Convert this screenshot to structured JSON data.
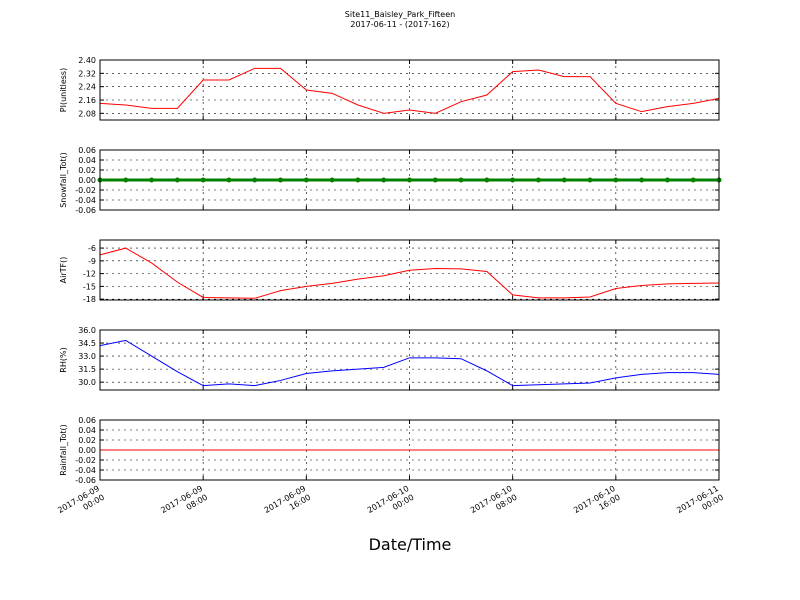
{
  "chart_data": [
    {
      "type": "line",
      "title": "Site11_Baisley_Park_Fifteen",
      "subtitle": "2017-06-11 - (2017-162)",
      "ylabel": "PI(unitless)",
      "color": "#ff0000",
      "grid": true,
      "x": [
        "2017-06-09 00:00",
        "2017-06-09 02:00",
        "2017-06-09 04:00",
        "2017-06-09 06:00",
        "2017-06-09 08:00",
        "2017-06-09 10:00",
        "2017-06-09 12:00",
        "2017-06-09 14:00",
        "2017-06-09 16:00",
        "2017-06-09 18:00",
        "2017-06-09 20:00",
        "2017-06-09 22:00",
        "2017-06-10 00:00",
        "2017-06-10 02:00",
        "2017-06-10 04:00",
        "2017-06-10 06:00",
        "2017-06-10 08:00",
        "2017-06-10 10:00",
        "2017-06-10 12:00",
        "2017-06-10 14:00",
        "2017-06-10 16:00",
        "2017-06-10 18:00",
        "2017-06-10 20:00",
        "2017-06-10 22:00",
        "2017-06-11 00:00"
      ],
      "values": [
        2.14,
        2.13,
        2.11,
        2.11,
        2.28,
        2.28,
        2.35,
        2.35,
        2.22,
        2.2,
        2.13,
        2.08,
        2.1,
        2.08,
        2.15,
        2.19,
        2.33,
        2.34,
        2.3,
        2.3,
        2.14,
        2.09,
        2.12,
        2.14,
        2.17
      ],
      "xlim": [
        "2017-06-09 00:00",
        "2017-06-11 00:00"
      ],
      "xticks": [
        "2017-06-09 00:00",
        "2017-06-09 08:00",
        "2017-06-09 16:00",
        "2017-06-10 00:00",
        "2017-06-10 08:00",
        "2017-06-10 16:00",
        "2017-06-11 00:00"
      ],
      "ylim": [
        2.04,
        2.4
      ],
      "yticks": [
        2.08,
        2.16,
        2.24,
        2.32,
        {
          "value": 2.4,
          "label": "2.40"
        }
      ]
    },
    {
      "type": "line",
      "ylabel": "Snowfall_Tot()",
      "color": "#008000",
      "markers": true,
      "grid": true,
      "x": [
        "2017-06-09 00:00",
        "2017-06-09 02:00",
        "2017-06-09 04:00",
        "2017-06-09 06:00",
        "2017-06-09 08:00",
        "2017-06-09 10:00",
        "2017-06-09 12:00",
        "2017-06-09 14:00",
        "2017-06-09 16:00",
        "2017-06-09 18:00",
        "2017-06-09 20:00",
        "2017-06-09 22:00",
        "2017-06-10 00:00",
        "2017-06-10 02:00",
        "2017-06-10 04:00",
        "2017-06-10 06:00",
        "2017-06-10 08:00",
        "2017-06-10 10:00",
        "2017-06-10 12:00",
        "2017-06-10 14:00",
        "2017-06-10 16:00",
        "2017-06-10 18:00",
        "2017-06-10 20:00",
        "2017-06-10 22:00",
        "2017-06-11 00:00"
      ],
      "values": [
        0,
        0,
        0,
        0,
        0,
        0,
        0,
        0,
        0,
        0,
        0,
        0,
        0,
        0,
        0,
        0,
        0,
        0,
        0,
        0,
        0,
        0,
        0,
        0,
        0
      ],
      "xlim": [
        "2017-06-09 00:00",
        "2017-06-11 00:00"
      ],
      "xticks": [
        "2017-06-09 00:00",
        "2017-06-09 08:00",
        "2017-06-09 16:00",
        "2017-06-10 00:00",
        "2017-06-10 08:00",
        "2017-06-10 16:00",
        "2017-06-11 00:00"
      ],
      "ylim": [
        -0.06,
        0.06
      ],
      "yticks": [
        -0.06,
        -0.04,
        -0.02,
        {
          "value": 0,
          "label": "0.00"
        },
        0.02,
        0.04,
        0.06
      ]
    },
    {
      "type": "line",
      "ylabel": "AirTF()",
      "color": "#ff0000",
      "grid": true,
      "x": [
        "2017-06-09 00:00",
        "2017-06-09 02:00",
        "2017-06-09 04:00",
        "2017-06-09 06:00",
        "2017-06-09 08:00",
        "2017-06-09 10:00",
        "2017-06-09 12:00",
        "2017-06-09 14:00",
        "2017-06-09 16:00",
        "2017-06-09 18:00",
        "2017-06-09 20:00",
        "2017-06-09 22:00",
        "2017-06-10 00:00",
        "2017-06-10 02:00",
        "2017-06-10 04:00",
        "2017-06-10 06:00",
        "2017-06-10 08:00",
        "2017-06-10 10:00",
        "2017-06-10 12:00",
        "2017-06-10 14:00",
        "2017-06-10 16:00",
        "2017-06-10 18:00",
        "2017-06-10 20:00",
        "2017-06-10 22:00",
        "2017-06-11 00:00"
      ],
      "values": [
        -7.6,
        -6.0,
        -9.5,
        -14,
        -17.6,
        -17.7,
        -17.8,
        -16.0,
        -15.0,
        -14.3,
        -13.3,
        -12.5,
        -11.2,
        -10.8,
        -10.9,
        -11.5,
        -17.0,
        -17.7,
        -17.7,
        -17.5,
        -15.5,
        -14.8,
        -14.4,
        -14.3,
        -14.2
      ],
      "xlim": [
        "2017-06-09 00:00",
        "2017-06-11 00:00"
      ],
      "xticks": [
        "2017-06-09 00:00",
        "2017-06-09 08:00",
        "2017-06-09 16:00",
        "2017-06-10 00:00",
        "2017-06-10 08:00",
        "2017-06-10 16:00",
        "2017-06-11 00:00"
      ],
      "ylim": [
        -18.2,
        -4.1
      ],
      "yticks": [
        -18,
        -15,
        -12,
        -9,
        -6
      ]
    },
    {
      "type": "line",
      "ylabel": "RH(%)",
      "color": "#0000ff",
      "grid": true,
      "x": [
        "2017-06-09 00:00",
        "2017-06-09 02:00",
        "2017-06-09 04:00",
        "2017-06-09 06:00",
        "2017-06-09 08:00",
        "2017-06-09 10:00",
        "2017-06-09 12:00",
        "2017-06-09 14:00",
        "2017-06-09 16:00",
        "2017-06-09 18:00",
        "2017-06-09 20:00",
        "2017-06-09 22:00",
        "2017-06-10 00:00",
        "2017-06-10 02:00",
        "2017-06-10 04:00",
        "2017-06-10 06:00",
        "2017-06-10 08:00",
        "2017-06-10 10:00",
        "2017-06-10 12:00",
        "2017-06-10 14:00",
        "2017-06-10 16:00",
        "2017-06-10 18:00",
        "2017-06-10 20:00",
        "2017-06-10 22:00",
        "2017-06-11 00:00"
      ],
      "values": [
        34.2,
        34.8,
        33.0,
        31.2,
        29.6,
        29.8,
        29.6,
        30.2,
        31.0,
        31.3,
        31.5,
        31.7,
        32.8,
        32.8,
        32.7,
        31.3,
        29.6,
        29.7,
        29.8,
        29.9,
        30.5,
        30.9,
        31.1,
        31.1,
        30.9
      ],
      "xlim": [
        "2017-06-09 00:00",
        "2017-06-11 00:00"
      ],
      "xticks": [
        "2017-06-09 00:00",
        "2017-06-09 08:00",
        "2017-06-09 16:00",
        "2017-06-10 00:00",
        "2017-06-10 08:00",
        "2017-06-10 16:00",
        "2017-06-11 00:00"
      ],
      "ylim": [
        29.1,
        36.0
      ],
      "yticks": [
        {
          "value": 30,
          "label": "30.0"
        },
        31.5,
        {
          "value": 33,
          "label": "33.0"
        },
        34.5,
        {
          "value": 36,
          "label": "36.0"
        }
      ]
    },
    {
      "type": "line",
      "ylabel": "Rainfall_Tot()",
      "xlabel": "Date/Time",
      "color": "#ff0000",
      "grid": true,
      "x": [
        "2017-06-09 00:00",
        "2017-06-09 02:00",
        "2017-06-09 04:00",
        "2017-06-09 06:00",
        "2017-06-09 08:00",
        "2017-06-09 10:00",
        "2017-06-09 12:00",
        "2017-06-09 14:00",
        "2017-06-09 16:00",
        "2017-06-09 18:00",
        "2017-06-09 20:00",
        "2017-06-09 22:00",
        "2017-06-10 00:00",
        "2017-06-10 02:00",
        "2017-06-10 04:00",
        "2017-06-10 06:00",
        "2017-06-10 08:00",
        "2017-06-10 10:00",
        "2017-06-10 12:00",
        "2017-06-10 14:00",
        "2017-06-10 16:00",
        "2017-06-10 18:00",
        "2017-06-10 20:00",
        "2017-06-10 22:00",
        "2017-06-11 00:00"
      ],
      "values": [
        0,
        0,
        0,
        0,
        0,
        0,
        0,
        0,
        0,
        0,
        0,
        0,
        0,
        0,
        0,
        0,
        0,
        0,
        0,
        0,
        0,
        0,
        0,
        0,
        0
      ],
      "xlim": [
        "2017-06-09 00:00",
        "2017-06-11 00:00"
      ],
      "xticks": [
        "2017-06-09 00:00",
        "2017-06-09 08:00",
        "2017-06-09 16:00",
        "2017-06-10 00:00",
        "2017-06-10 08:00",
        "2017-06-10 16:00",
        "2017-06-11 00:00"
      ],
      "ylim": [
        -0.06,
        0.06
      ],
      "yticks": [
        -0.06,
        -0.04,
        -0.02,
        {
          "value": 0,
          "label": "0.00"
        },
        0.02,
        0.04,
        0.06
      ]
    }
  ]
}
